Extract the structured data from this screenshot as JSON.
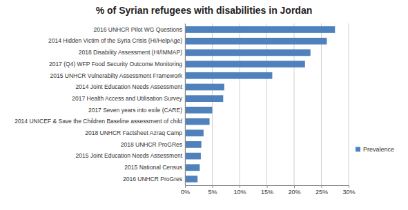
{
  "chart_data": {
    "type": "bar",
    "orientation": "horizontal",
    "title": "% of Syrian refugees with disabilities in Jordan",
    "categories": [
      "2016 UNHCR Pilot WG Questions",
      "2014 Hidden Victim of the Syria Crisis (HI/HelpAge)",
      "2018 Disability Assessment (HI/IMMAP)",
      "2017 (Q4) WFP Food Security Outcome Monitoring",
      "2015 UNHCR Vulnerabilty Assessment Framework",
      "2014 Joint Education Needs Assessment",
      "2017 Health Access and Utilisation Survey",
      "2017 Seven years into exile (CARE)",
      "2014 UNICEF & Save the Children Baseline assessment of child",
      "2018 UNHCR Factsheet Azraq Camp",
      "2018 UNHCR ProGRes",
      "2015 Joint Education Needs Assessment",
      "2015 National Census",
      "2016 UNHCR ProGres"
    ],
    "series": [
      {
        "name": "Prevalence",
        "color": "#4f81bd",
        "values": [
          27.5,
          26,
          23,
          22,
          16,
          7.2,
          7,
          5,
          4.5,
          3.4,
          3,
          2.9,
          2.7,
          2.3
        ]
      }
    ],
    "xlim": [
      0,
      30
    ],
    "xticks": [
      {
        "value": 0,
        "label": "0%"
      },
      {
        "value": 5,
        "label": "5%"
      },
      {
        "value": 10,
        "label": "10%"
      },
      {
        "value": 15,
        "label": "15%"
      },
      {
        "value": 20,
        "label": "20%"
      },
      {
        "value": 25,
        "label": "25%"
      },
      {
        "value": 30,
        "label": "30%"
      }
    ],
    "grid": true,
    "legend": "right"
  }
}
